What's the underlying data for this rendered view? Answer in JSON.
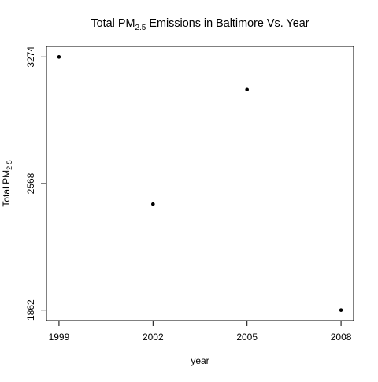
{
  "chart_data": {
    "type": "scatter",
    "title": {
      "prefix": "Total PM",
      "subscript": "2.5",
      "suffix": " Emissions in Baltimore Vs. Year"
    },
    "xlabel": "year",
    "ylabel": {
      "prefix": "Total PM",
      "subscript": "2.5"
    },
    "x_ticks": [
      "1999",
      "2002",
      "2005",
      "2008"
    ],
    "y_ticks": [
      "1862",
      "2568",
      "3274"
    ],
    "xlim": [
      1998.6,
      2008.4
    ],
    "ylim": [
      1803.5,
      3332.5
    ],
    "points": [
      {
        "x": 1999,
        "y": 3274
      },
      {
        "x": 2002,
        "y": 2453
      },
      {
        "x": 2005,
        "y": 3092
      },
      {
        "x": 2008,
        "y": 1862
      }
    ],
    "grid": false,
    "legend": "none",
    "point_color": "#000000"
  }
}
